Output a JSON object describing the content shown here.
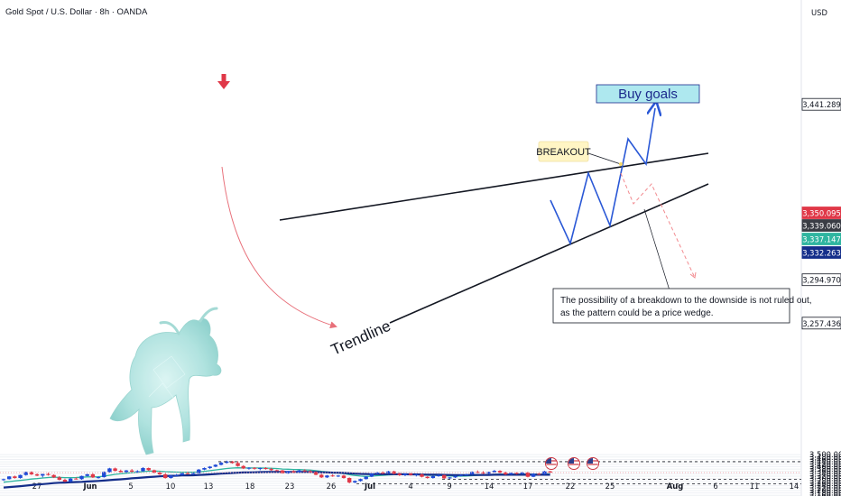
{
  "title": "Gold Spot / U.S. Dollar · 8h · OANDA",
  "currency": "USD",
  "colors": {
    "up": "#1e4bd6",
    "down": "#e03848",
    "ema_fast": "#2fb5a0",
    "ema_slow": "#142e8a",
    "grid": "#eef0f4",
    "projection_up": "#2a58d6",
    "projection_down": "#f28a8f",
    "buy_box_fill": "#aee8ef",
    "buy_box_text": "#1b2a8c",
    "breakout_fill": "#fff5c4",
    "marker_arrow": "#e03848"
  },
  "icons": [
    "flag-us-icon",
    "flag-us-icon",
    "flag-us-icon",
    "bull-icon"
  ],
  "annotations": {
    "buy_goals": "Buy goals",
    "breakout": "BREAKOUT",
    "trendline": "Trendline",
    "note_line1": "The possibility of a breakdown to the downside is not ruled out,",
    "note_line2": "as the pattern could be a price wedge."
  },
  "chart_data": {
    "type": "candlestick",
    "title": "Gold Spot / U.S. Dollar · 8h · OANDA",
    "y_axis": {
      "unit": "USD",
      "range": [
        3135,
        3520
      ],
      "ticks": [
        "3,140.000",
        "3,160.000",
        "3,180.000",
        "3,200.000",
        "3,220.000",
        "3,240.000",
        "3,260.000",
        "3,280.000",
        "3,300.000",
        "3,320.000",
        "3,340.000",
        "3,360.000",
        "3,380.000",
        "3,400.000",
        "3,420.000",
        "3,440.000",
        "3,460.000",
        "3,480.000",
        "3,500.000"
      ]
    },
    "x_axis": {
      "ticks": [
        "27",
        "Jun",
        "5",
        "10",
        "13",
        "18",
        "23",
        "26",
        "Jul",
        "4",
        "9",
        "14",
        "17",
        "22",
        "25",
        "Aug",
        "6",
        "11",
        "14"
      ]
    },
    "price_labels": [
      {
        "value": 3441.289,
        "text": "3,441.289",
        "style": "level"
      },
      {
        "value": 3350.095,
        "text": "3,350.095",
        "style": "last"
      },
      {
        "value": 3339.06,
        "text": "3,339.060",
        "style": "dark"
      },
      {
        "value": 3337.147,
        "text": "3,337.147",
        "style": "ema_fast"
      },
      {
        "value": 3332.263,
        "text": "3,332.263",
        "style": "ema_slow"
      },
      {
        "value": 3294.97,
        "text": "3,294.970",
        "style": "level"
      },
      {
        "value": 3257.436,
        "text": "3,257.436",
        "style": "level"
      }
    ],
    "levels": [
      {
        "name": "buy-goal-level",
        "value": 3441.289
      },
      {
        "name": "support-level",
        "value": 3294.97
      },
      {
        "name": "low-level",
        "value": 3257.436
      }
    ],
    "candles": [
      [
        3294,
        3300,
        3282,
        3295
      ],
      [
        3295,
        3320,
        3292,
        3318
      ],
      [
        3318,
        3325,
        3300,
        3305
      ],
      [
        3305,
        3333,
        3300,
        3330
      ],
      [
        3330,
        3358,
        3325,
        3355
      ],
      [
        3355,
        3360,
        3330,
        3335
      ],
      [
        3335,
        3345,
        3320,
        3325
      ],
      [
        3325,
        3340,
        3310,
        3338
      ],
      [
        3338,
        3350,
        3325,
        3330
      ],
      [
        3330,
        3335,
        3305,
        3310
      ],
      [
        3310,
        3320,
        3285,
        3290
      ],
      [
        3290,
        3300,
        3270,
        3275
      ],
      [
        3275,
        3305,
        3270,
        3300
      ],
      [
        3300,
        3310,
        3292,
        3295
      ],
      [
        3295,
        3325,
        3290,
        3322
      ],
      [
        3322,
        3340,
        3318,
        3336
      ],
      [
        3336,
        3345,
        3305,
        3310
      ],
      [
        3310,
        3318,
        3300,
        3312
      ],
      [
        3312,
        3360,
        3308,
        3355
      ],
      [
        3355,
        3390,
        3350,
        3385
      ],
      [
        3385,
        3392,
        3360,
        3365
      ],
      [
        3365,
        3375,
        3350,
        3355
      ],
      [
        3355,
        3372,
        3350,
        3368
      ],
      [
        3368,
        3380,
        3352,
        3358
      ],
      [
        3358,
        3370,
        3350,
        3362
      ],
      [
        3362,
        3395,
        3358,
        3388
      ],
      [
        3388,
        3392,
        3365,
        3370
      ],
      [
        3370,
        3375,
        3345,
        3350
      ],
      [
        3350,
        3360,
        3330,
        3335
      ],
      [
        3335,
        3345,
        3300,
        3305
      ],
      [
        3305,
        3330,
        3300,
        3325
      ],
      [
        3325,
        3338,
        3320,
        3330
      ],
      [
        3330,
        3350,
        3325,
        3345
      ],
      [
        3345,
        3358,
        3335,
        3340
      ],
      [
        3340,
        3350,
        3330,
        3345
      ],
      [
        3345,
        3380,
        3342,
        3375
      ],
      [
        3375,
        3393,
        3370,
        3388
      ],
      [
        3388,
        3405,
        3380,
        3400
      ],
      [
        3400,
        3420,
        3395,
        3415
      ],
      [
        3415,
        3440,
        3410,
        3432
      ],
      [
        3432,
        3450,
        3425,
        3443
      ],
      [
        3443,
        3448,
        3425,
        3430
      ],
      [
        3430,
        3445,
        3400,
        3405
      ],
      [
        3405,
        3412,
        3380,
        3385
      ],
      [
        3385,
        3395,
        3375,
        3390
      ],
      [
        3390,
        3395,
        3375,
        3382
      ],
      [
        3382,
        3392,
        3370,
        3388
      ],
      [
        3388,
        3395,
        3375,
        3380
      ],
      [
        3380,
        3390,
        3365,
        3370
      ],
      [
        3370,
        3375,
        3362,
        3368
      ],
      [
        3368,
        3372,
        3342,
        3345
      ],
      [
        3345,
        3365,
        3340,
        3362
      ],
      [
        3362,
        3370,
        3348,
        3352
      ],
      [
        3352,
        3372,
        3350,
        3368
      ],
      [
        3368,
        3378,
        3355,
        3360
      ],
      [
        3360,
        3372,
        3350,
        3355
      ],
      [
        3355,
        3360,
        3328,
        3332
      ],
      [
        3332,
        3340,
        3305,
        3310
      ],
      [
        3310,
        3330,
        3305,
        3326
      ],
      [
        3326,
        3335,
        3315,
        3320
      ],
      [
        3320,
        3330,
        3312,
        3325
      ],
      [
        3325,
        3332,
        3300,
        3305
      ],
      [
        3305,
        3310,
        3260,
        3268
      ],
      [
        3268,
        3285,
        3262,
        3280
      ],
      [
        3280,
        3300,
        3275,
        3296
      ],
      [
        3296,
        3320,
        3292,
        3316
      ],
      [
        3316,
        3345,
        3312,
        3342
      ],
      [
        3342,
        3356,
        3335,
        3350
      ],
      [
        3350,
        3360,
        3338,
        3345
      ],
      [
        3345,
        3365,
        3340,
        3360
      ],
      [
        3360,
        3366,
        3335,
        3340
      ],
      [
        3340,
        3350,
        3322,
        3328
      ],
      [
        3328,
        3345,
        3320,
        3342
      ],
      [
        3342,
        3348,
        3325,
        3330
      ],
      [
        3330,
        3340,
        3318,
        3335
      ],
      [
        3335,
        3342,
        3310,
        3315
      ],
      [
        3315,
        3320,
        3300,
        3305
      ],
      [
        3305,
        3325,
        3300,
        3320
      ],
      [
        3320,
        3335,
        3315,
        3330
      ],
      [
        3330,
        3332,
        3298,
        3302
      ],
      [
        3302,
        3312,
        3292,
        3310
      ],
      [
        3310,
        3325,
        3305,
        3322
      ],
      [
        3322,
        3335,
        3318,
        3330
      ],
      [
        3330,
        3340,
        3325,
        3335
      ],
      [
        3335,
        3360,
        3330,
        3355
      ],
      [
        3355,
        3368,
        3345,
        3350
      ],
      [
        3350,
        3362,
        3338,
        3342
      ],
      [
        3342,
        3358,
        3338,
        3355
      ],
      [
        3355,
        3372,
        3350,
        3365
      ],
      [
        3365,
        3370,
        3345,
        3350
      ],
      [
        3350,
        3358,
        3330,
        3335
      ],
      [
        3335,
        3350,
        3332,
        3347
      ],
      [
        3347,
        3352,
        3335,
        3340
      ],
      [
        3340,
        3355,
        3335,
        3350
      ],
      [
        3350,
        3356,
        3310,
        3315
      ],
      [
        3315,
        3345,
        3312,
        3340
      ],
      [
        3340,
        3348,
        3330,
        3335
      ],
      [
        3335,
        3365,
        3332,
        3360
      ],
      [
        3360,
        3365,
        3345,
        3350
      ]
    ],
    "ema_fast": [
      3270,
      3275,
      3280,
      3285,
      3290,
      3296,
      3300,
      3305,
      3309,
      3312,
      3310,
      3308,
      3308,
      3309,
      3311,
      3314,
      3314,
      3315,
      3320,
      3328,
      3335,
      3340,
      3345,
      3350,
      3353,
      3358,
      3362,
      3363,
      3362,
      3358,
      3356,
      3354,
      3353,
      3353,
      3353,
      3355,
      3360,
      3366,
      3372,
      3378,
      3384,
      3388,
      3390,
      3389,
      3389,
      3389,
      3389,
      3388,
      3386,
      3384,
      3380,
      3378,
      3376,
      3375,
      3373,
      3371,
      3366,
      3360,
      3356,
      3351,
      3347,
      3342,
      3333,
      3326,
      3321,
      3318,
      3320,
      3324,
      3327,
      3331,
      3333,
      3333,
      3334,
      3333,
      3333,
      3331,
      3328,
      3327,
      3327,
      3324,
      3321,
      3320,
      3320,
      3321,
      3324,
      3327,
      3329,
      3332,
      3335,
      3337,
      3337,
      3337,
      3338,
      3339,
      3336,
      3337,
      3337,
      3339,
      3340
    ],
    "ema_slow": [
      3225,
      3229,
      3233,
      3237,
      3241,
      3246,
      3250,
      3254,
      3258,
      3262,
      3265,
      3267,
      3269,
      3271,
      3273,
      3276,
      3278,
      3280,
      3283,
      3287,
      3291,
      3294,
      3298,
      3302,
      3305,
      3309,
      3313,
      3316,
      3319,
      3321,
      3323,
      3324,
      3326,
      3327,
      3328,
      3330,
      3332,
      3335,
      3338,
      3341,
      3344,
      3347,
      3349,
      3351,
      3352,
      3353,
      3354,
      3355,
      3356,
      3356,
      3356,
      3356,
      3356,
      3356,
      3356,
      3356,
      3355,
      3353,
      3352,
      3350,
      3349,
      3347,
      3344,
      3341,
      3339,
      3338,
      3337,
      3337,
      3337,
      3337,
      3337,
      3336,
      3336,
      3335,
      3335,
      3334,
      3333,
      3332,
      3332,
      3331,
      3330,
      3329,
      3329,
      3329,
      3330,
      3330,
      3330,
      3331,
      3332,
      3332,
      3332,
      3332,
      3332,
      3333,
      3332,
      3332,
      3332,
      3332,
      3332
    ]
  }
}
